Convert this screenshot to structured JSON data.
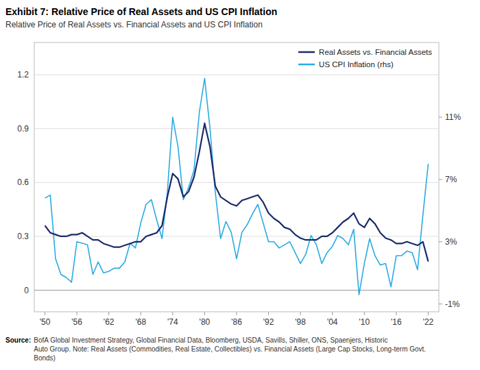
{
  "chart_data": {
    "type": "line",
    "title": "Exhibit 7: Relative Price of Real Assets and US CPI Inflation",
    "subtitle": "Relative Price of Real Assets vs. Financial Assets and US CPI Inflation",
    "source_label": "Source:",
    "source": "  BofA Global Investment Strategy, Global Financial Data, Bloomberg, USDA, Savills, Shiller, ONS,  Spaenjers, Historic\nAuto Group. Note: Real Assets (Commodities, Real Estate, Collectibles) vs. Financial Assets (Large Cap Stocks, Long-term Govt.\nBonds)",
    "x": [
      1950,
      1951,
      1952,
      1953,
      1954,
      1955,
      1956,
      1957,
      1958,
      1959,
      1960,
      1961,
      1962,
      1963,
      1964,
      1965,
      1966,
      1967,
      1968,
      1969,
      1970,
      1971,
      1972,
      1973,
      1974,
      1975,
      1976,
      1977,
      1978,
      1979,
      1980,
      1981,
      1982,
      1983,
      1984,
      1985,
      1986,
      1987,
      1988,
      1989,
      1990,
      1991,
      1992,
      1993,
      1994,
      1995,
      1996,
      1997,
      1998,
      1999,
      2000,
      2001,
      2002,
      2003,
      2004,
      2005,
      2006,
      2007,
      2008,
      2009,
      2010,
      2011,
      2012,
      2013,
      2014,
      2015,
      2016,
      2017,
      2018,
      2019,
      2020,
      2021,
      2022
    ],
    "series": [
      {
        "name": "Real Assets vs. Financial Assets",
        "color": "#1b2a6b",
        "values": [
          0.36,
          0.32,
          0.31,
          0.3,
          0.3,
          0.31,
          0.31,
          0.32,
          0.3,
          0.28,
          0.28,
          0.26,
          0.25,
          0.24,
          0.24,
          0.25,
          0.26,
          0.27,
          0.27,
          0.3,
          0.31,
          0.32,
          0.36,
          0.52,
          0.65,
          0.62,
          0.52,
          0.55,
          0.63,
          0.77,
          0.93,
          0.8,
          0.58,
          0.52,
          0.5,
          0.48,
          0.47,
          0.5,
          0.51,
          0.52,
          0.53,
          0.49,
          0.43,
          0.4,
          0.38,
          0.35,
          0.34,
          0.31,
          0.29,
          0.28,
          0.28,
          0.28,
          0.3,
          0.3,
          0.32,
          0.35,
          0.38,
          0.4,
          0.43,
          0.37,
          0.35,
          0.4,
          0.37,
          0.32,
          0.29,
          0.28,
          0.26,
          0.26,
          0.27,
          0.26,
          0.25,
          0.27,
          0.16
        ]
      },
      {
        "name": "US CPI Inflation (rhs)",
        "color": "#29abe2",
        "axis": "y2",
        "values": [
          0.058,
          0.06,
          0.019,
          0.009,
          0.007,
          0.004,
          0.03,
          0.029,
          0.028,
          0.009,
          0.017,
          0.01,
          0.011,
          0.013,
          0.013,
          0.017,
          0.029,
          0.026,
          0.042,
          0.054,
          0.057,
          0.044,
          0.032,
          0.062,
          0.11,
          0.091,
          0.057,
          0.065,
          0.076,
          0.113,
          0.135,
          0.103,
          0.062,
          0.032,
          0.043,
          0.036,
          0.019,
          0.036,
          0.041,
          0.048,
          0.054,
          0.042,
          0.03,
          0.03,
          0.026,
          0.028,
          0.03,
          0.023,
          0.016,
          0.022,
          0.034,
          0.028,
          0.016,
          0.023,
          0.027,
          0.034,
          0.032,
          0.028,
          0.038,
          -0.004,
          0.016,
          0.032,
          0.021,
          0.015,
          0.016,
          0.001,
          0.021,
          0.021,
          0.024,
          0.023,
          0.012,
          0.047,
          0.08
        ]
      }
    ],
    "xlim": [
      1948,
      2024
    ],
    "xticks": [
      {
        "value": 1950,
        "label": "'50"
      },
      {
        "value": 1956,
        "label": "'56"
      },
      {
        "value": 1962,
        "label": "'62"
      },
      {
        "value": 1968,
        "label": "'68"
      },
      {
        "value": 1974,
        "label": "'74"
      },
      {
        "value": 1980,
        "label": "'80"
      },
      {
        "value": 1986,
        "label": "'86"
      },
      {
        "value": 1992,
        "label": "'92"
      },
      {
        "value": 1998,
        "label": "'98"
      },
      {
        "value": 2004,
        "label": "'04"
      },
      {
        "value": 2010,
        "label": "'10"
      },
      {
        "value": 2016,
        "label": "'16"
      },
      {
        "value": 2022,
        "label": "'22"
      }
    ],
    "ylim": [
      -0.12,
      1.38
    ],
    "yticks": [
      0,
      0.3,
      0.6,
      0.9,
      1.2
    ],
    "y2lim": [
      -0.015,
      0.158
    ],
    "y2ticks": [
      {
        "value": -0.01,
        "label": "-1%"
      },
      {
        "value": 0.03,
        "label": "3%"
      },
      {
        "value": 0.07,
        "label": "7%"
      },
      {
        "value": 0.11,
        "label": "11%"
      }
    ],
    "grid": true,
    "legend": "upper right"
  }
}
